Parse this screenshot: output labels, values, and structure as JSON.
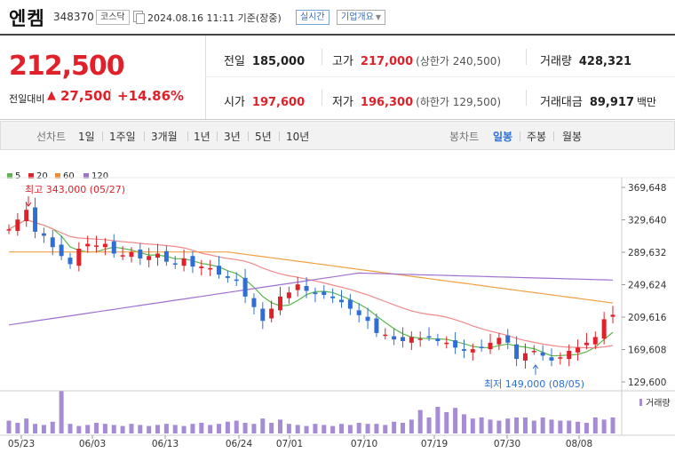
{
  "header": {
    "stock_name": "엔켐",
    "stock_code": "348370",
    "market_badge": "코스닥",
    "timestamp": "2024.08.16 11:11 기준(장중)",
    "realtime_badge": "실시간",
    "company_badge": "기업개요"
  },
  "summary": {
    "current_price": "212,500",
    "change_label": "전일대비",
    "change_arrow": "▲",
    "change_value": "27,500",
    "change_percent": "+14.86%",
    "prev_close": {
      "label": "전일",
      "value": "185,000"
    },
    "high": {
      "label": "고가",
      "value": "217,000",
      "limit_text": "(상한가 240,500)"
    },
    "volume": {
      "label": "거래량",
      "value": "428,321"
    },
    "open": {
      "label": "시가",
      "value": "197,600"
    },
    "low": {
      "label": "저가",
      "value": "196,300",
      "limit_text": "(하한가 129,500)"
    },
    "trade_amount": {
      "label": "거래대금",
      "value": "89,917",
      "unit": "백만"
    }
  },
  "period_bar": {
    "line_label": "선차트",
    "line_periods": [
      "1일",
      "1주일",
      "3개월",
      "1년",
      "3년",
      "5년",
      "10년"
    ],
    "candle_label": "봉차트",
    "candle_periods": [
      "일봉",
      "주봉",
      "월봉"
    ],
    "selected_candle": "일봉"
  },
  "colors": {
    "up": "#e0212a",
    "down": "#2f6fd3",
    "ma5": "#5ab84a",
    "ma20": "#f08a8a",
    "ma60": "#f0a040",
    "ma120": "#a070d0",
    "volume": "#a68bd6"
  },
  "chart_data": {
    "type": "candlestick",
    "legend": [
      "5",
      "20",
      "60",
      "120"
    ],
    "y_ticks": [
      "369,648",
      "329,640",
      "289,632",
      "249,624",
      "209,616",
      "169,608",
      "129,600"
    ],
    "y_tick_values": [
      369648,
      329640,
      289632,
      249624,
      209616,
      169608,
      129600
    ],
    "x_ticks": [
      "05/23",
      "06/03",
      "06/13",
      "06/24",
      "07/01",
      "07/10",
      "07/19",
      "07/30",
      "08/08"
    ],
    "high_annotation": "최고 343,000 (05/27)",
    "low_annotation": "최저 149,000 (08/05)",
    "volume_label": "거래량",
    "ma_last": {
      "ma5": 180000,
      "ma20": 173000,
      "ma60": 227000,
      "ma120": 255000
    }
  }
}
